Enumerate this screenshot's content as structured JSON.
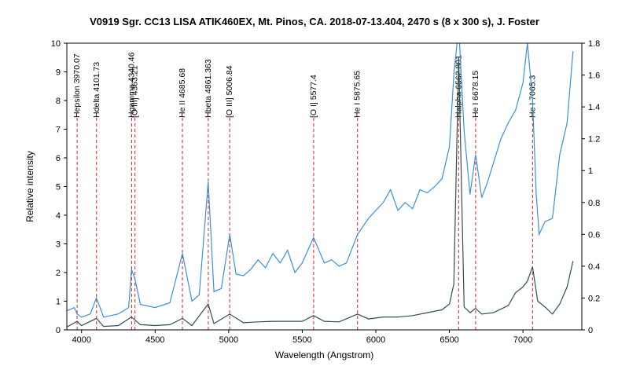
{
  "chart_data": {
    "type": "line",
    "title": "V0919 Sgr. CC13 LISA ATIK460EX, Mt. Pinos, CA.  2018-07-13.404, 2470 s (8 x 300 s),  J. Foster",
    "xlabel": "Wavelength (Angstrom)",
    "ylabel": "Relative intensity",
    "xlim": [
      3900,
      7400
    ],
    "ylim_left": [
      0,
      10
    ],
    "ylim_right": [
      0,
      1.8
    ],
    "x_ticks": [
      "4000",
      "4500",
      "5000",
      "5500",
      "6000",
      "6500",
      "7000"
    ],
    "y_ticks_left": [
      "0",
      "1",
      "2",
      "3",
      "4",
      "5",
      "6",
      "7",
      "8",
      "9",
      "10"
    ],
    "y_ticks_right": [
      "0",
      "0.2",
      "0.4",
      "0.6",
      "0.8",
      "1",
      "1.2",
      "1.4",
      "1.6",
      "1.8"
    ],
    "grid": false,
    "series": [
      {
        "axis": "right",
        "color": "#3a90dd",
        "x": [
          3900,
          3950,
          3970,
          4000,
          4060,
          4101,
          4150,
          4250,
          4320,
          4340,
          4363,
          4400,
          4500,
          4600,
          4686,
          4750,
          4800,
          4861,
          4900,
          4950,
          5007,
          5050,
          5100,
          5150,
          5200,
          5250,
          5300,
          5350,
          5400,
          5450,
          5500,
          5577,
          5650,
          5700,
          5750,
          5800,
          5876,
          5950,
          6000,
          6050,
          6100,
          6150,
          6200,
          6250,
          6300,
          6350,
          6400,
          6450,
          6500,
          6530,
          6563,
          6600,
          6640,
          6678,
          6720,
          6760,
          6800,
          6850,
          6900,
          6950,
          7000,
          7030,
          7065,
          7090,
          7110,
          7150,
          7200,
          7250,
          7300,
          7340
        ],
        "values": [
          0.12,
          0.14,
          0.1,
          0.08,
          0.1,
          0.2,
          0.08,
          0.1,
          0.14,
          0.38,
          0.32,
          0.16,
          0.14,
          0.17,
          0.48,
          0.18,
          0.22,
          0.93,
          0.24,
          0.26,
          0.6,
          0.35,
          0.34,
          0.38,
          0.44,
          0.39,
          0.48,
          0.42,
          0.5,
          0.36,
          0.42,
          0.58,
          0.42,
          0.44,
          0.4,
          0.42,
          0.6,
          0.7,
          0.75,
          0.8,
          0.88,
          0.75,
          0.8,
          0.76,
          0.88,
          0.86,
          0.9,
          0.95,
          1.15,
          1.6,
          1.9,
          1.25,
          0.85,
          1.1,
          0.83,
          0.93,
          1.05,
          1.2,
          1.3,
          1.38,
          1.55,
          1.8,
          1.45,
          0.85,
          0.6,
          0.68,
          0.7,
          1.1,
          1.3,
          1.75
        ]
      },
      {
        "axis": "left",
        "color": "#2f4f4f",
        "x": [
          3900,
          3970,
          4000,
          4101,
          4150,
          4250,
          4340,
          4400,
          4500,
          4600,
          4686,
          4750,
          4861,
          4900,
          5007,
          5100,
          5200,
          5300,
          5400,
          5500,
          5577,
          5650,
          5750,
          5876,
          5950,
          6050,
          6150,
          6250,
          6350,
          6450,
          6500,
          6530,
          6563,
          6600,
          6640,
          6678,
          6720,
          6800,
          6900,
          6950,
          7000,
          7030,
          7065,
          7100,
          7150,
          7200,
          7250,
          7300,
          7340
        ],
        "values": [
          0.1,
          0.3,
          0.15,
          0.4,
          0.12,
          0.15,
          0.45,
          0.18,
          0.15,
          0.18,
          0.4,
          0.15,
          0.9,
          0.22,
          0.55,
          0.25,
          0.28,
          0.3,
          0.3,
          0.3,
          0.5,
          0.3,
          0.28,
          0.55,
          0.38,
          0.45,
          0.45,
          0.5,
          0.6,
          0.7,
          0.9,
          1.6,
          9.5,
          0.8,
          0.6,
          0.75,
          0.55,
          0.6,
          0.85,
          1.3,
          1.5,
          1.7,
          2.2,
          1.0,
          0.8,
          0.55,
          0.9,
          1.5,
          2.4
        ]
      }
    ],
    "annotations": [
      {
        "label": "Hepsilon 3970.07",
        "x": 3970.07
      },
      {
        "label": "Hdelta 4101.73",
        "x": 4101.73
      },
      {
        "label": "Hgamma 4340.46",
        "x": 4340.46
      },
      {
        "label": "[O III] 4363.21",
        "x": 4363.21
      },
      {
        "label": "He II 4685.68",
        "x": 4685.68
      },
      {
        "label": "Hbeta 4861.363",
        "x": 4861.363
      },
      {
        "label": "[O III] 5006.84",
        "x": 5006.84
      },
      {
        "label": "[O I] 5577.4",
        "x": 5577.4
      },
      {
        "label": "He I 5875.65",
        "x": 5875.65
      },
      {
        "label": "Halpha 6562.801",
        "x": 6562.801
      },
      {
        "label": "He I 6678.15",
        "x": 6678.15
      },
      {
        "label": "He I 7065.3",
        "x": 7065.3
      }
    ],
    "annotation_color": "#dd2222"
  }
}
